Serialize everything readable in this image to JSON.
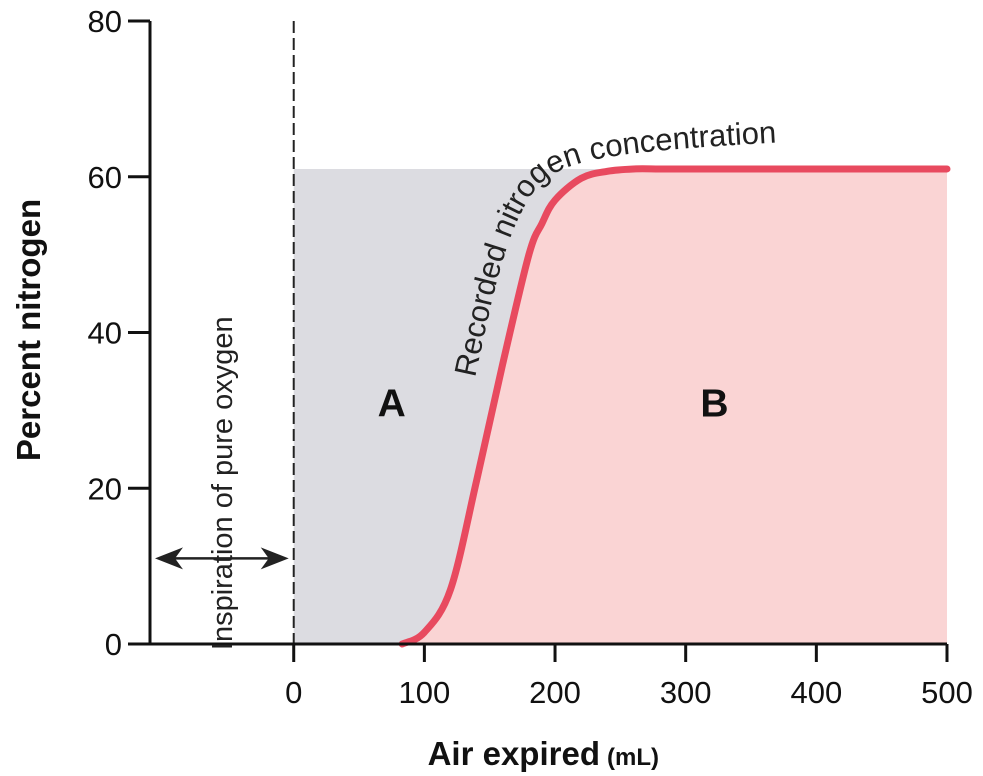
{
  "chart_data": {
    "type": "area",
    "xlabel": "Air expired",
    "xlabel_unit": "(mL)",
    "ylabel": "Percent nitrogen",
    "xlim": [
      -110,
      500
    ],
    "ylim": [
      0,
      80
    ],
    "x_ticks": [
      "0",
      "100",
      "200",
      "300",
      "400",
      "500"
    ],
    "y_ticks": [
      "0",
      "20",
      "40",
      "60",
      "80"
    ],
    "grid": false,
    "plateau_value": 61,
    "series": [
      {
        "name": "Recorded nitrogen concentration",
        "x": [
          83,
          100,
          120,
          140,
          160,
          180,
          190,
          200,
          220,
          240,
          260,
          280,
          300,
          400,
          500
        ],
        "y": [
          0,
          1.5,
          7,
          21,
          36,
          50,
          54,
          57,
          59.8,
          60.7,
          61,
          61,
          61,
          61,
          61
        ]
      }
    ],
    "annotations": [
      {
        "text": "Inspiration of pure oxygen",
        "x": -55,
        "y": 20
      },
      {
        "text": "A",
        "x": 75,
        "y": 31
      },
      {
        "text": "B",
        "x": 322,
        "y": 31
      }
    ],
    "colors": {
      "curve": "#e84a5f",
      "region_a": "#dcdce1",
      "region_b": "#fad4d4",
      "axis": "#111111"
    }
  }
}
